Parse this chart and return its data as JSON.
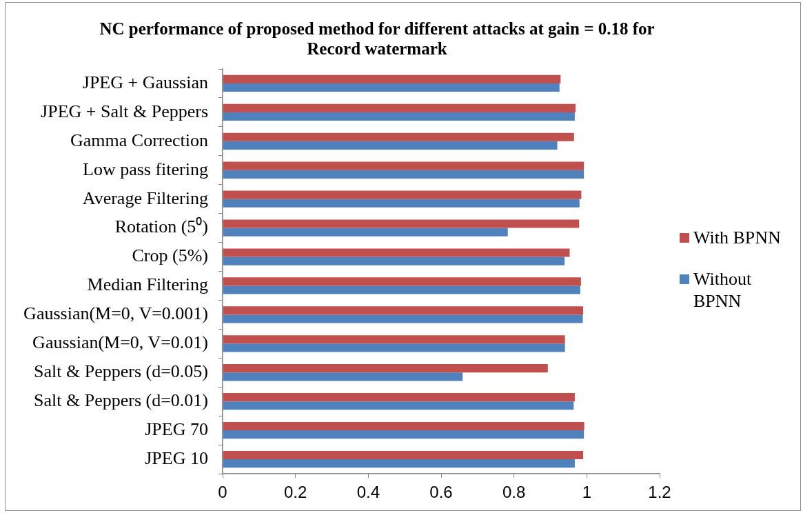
{
  "chart_data": {
    "type": "bar",
    "orientation": "horizontal",
    "title": "NC performance of proposed method for different attacks at gain = 0.18 for Record watermark",
    "categories": [
      "JPEG + Gaussian",
      "JPEG + Salt & Peppers",
      "Gamma Correction",
      "Low pass fitering",
      "Average Filtering",
      "Rotation (5⁰)",
      "Crop (5%)",
      "Median Filtering",
      "Gaussian(M=0, V=0.001)",
      "Gaussian(M=0, V=0.01)",
      "Salt & Peppers (d=0.05)",
      "Salt & Peppers (d=0.01)",
      "JPEG 70",
      "JPEG 10"
    ],
    "series": [
      {
        "name": "With BPNN",
        "color": "#c0504d",
        "values": [
          0.928,
          0.969,
          0.965,
          0.992,
          0.985,
          0.979,
          0.953,
          0.984,
          0.99,
          0.94,
          0.893,
          0.967,
          0.993,
          0.99
        ]
      },
      {
        "name": "Without BPNN",
        "color": "#4f81bd",
        "values": [
          0.925,
          0.967,
          0.919,
          0.992,
          0.98,
          0.783,
          0.939,
          0.982,
          0.989,
          0.94,
          0.659,
          0.964,
          0.992,
          0.967
        ]
      }
    ],
    "xlim": [
      0,
      1.2
    ],
    "xticks": [
      0,
      0.2,
      0.4,
      0.6,
      0.8,
      1,
      1.2
    ],
    "grid": false,
    "legend": "right"
  }
}
